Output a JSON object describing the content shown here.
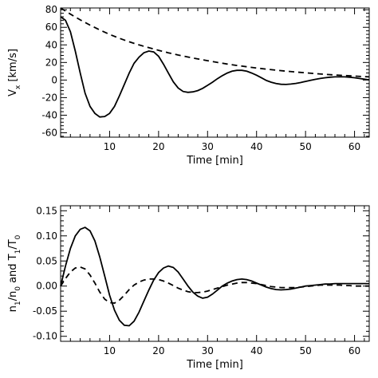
{
  "chart_data": [
    {
      "type": "line",
      "xlabel": "Time [min]",
      "ylabel": "V_x [km/s]",
      "xlim": [
        0,
        63
      ],
      "ylim": [
        -65,
        82
      ],
      "xticks": [
        10,
        20,
        30,
        40,
        50,
        60
      ],
      "yticks": [
        -60,
        -40,
        -20,
        0,
        20,
        40,
        60,
        80
      ],
      "grid": false,
      "series": [
        {
          "style": "solid",
          "x": [
            0,
            1,
            2,
            3,
            4,
            5,
            6,
            7,
            8,
            9,
            10,
            11,
            12,
            13,
            14,
            15,
            16,
            17,
            18,
            19,
            20,
            21,
            22,
            23,
            24,
            25,
            26,
            27,
            28,
            29,
            30,
            31,
            32,
            33,
            34,
            35,
            36,
            37,
            38,
            39,
            40,
            41,
            42,
            43,
            44,
            45,
            46,
            47,
            48,
            49,
            50,
            51,
            52,
            53,
            54,
            55,
            56,
            57,
            58,
            59,
            60,
            61,
            62,
            63
          ],
          "values": [
            72,
            68,
            55,
            33,
            8,
            -15,
            -30,
            -38,
            -42,
            -41.5,
            -38,
            -30,
            -18,
            -5,
            8,
            19,
            26,
            31,
            33,
            32,
            27,
            18,
            8,
            -2,
            -9,
            -13,
            -14,
            -13.5,
            -12,
            -9.5,
            -6,
            -2.5,
            1.5,
            5,
            8,
            10,
            11,
            11,
            10,
            8,
            5.5,
            2.5,
            -0.5,
            -2.5,
            -4,
            -4.8,
            -5,
            -4.6,
            -3.8,
            -2.8,
            -1.6,
            -0.4,
            0.8,
            1.8,
            2.6,
            3.2,
            3.6,
            3.7,
            3.6,
            3.2,
            2.6,
            1.8,
            1,
            0.2
          ]
        },
        {
          "style": "dashed",
          "x": [
            0,
            2,
            4,
            6,
            8,
            10,
            12,
            14,
            16,
            18,
            20,
            22,
            24,
            26,
            28,
            30,
            32,
            34,
            36,
            38,
            40,
            42,
            44,
            46,
            48,
            50,
            52,
            54,
            56,
            58,
            60,
            62,
            63
          ],
          "values": [
            82,
            75,
            68.5,
            62.5,
            57,
            52,
            47.5,
            43.5,
            40,
            36.8,
            33.8,
            31,
            28.5,
            26.2,
            24,
            22,
            20,
            18.2,
            16.6,
            15.1,
            13.7,
            12.4,
            11.2,
            10.1,
            9.1,
            8.2,
            7.3,
            6.5,
            5.8,
            5.1,
            4.5,
            3.9,
            3.6
          ]
        }
      ]
    },
    {
      "type": "line",
      "xlabel": "Time [min]",
      "ylabel": "n_1/n_0 and T_1/T_0",
      "xlim": [
        0,
        63
      ],
      "ylim": [
        -0.11,
        0.16
      ],
      "xticks": [
        10,
        20,
        30,
        40,
        50,
        60
      ],
      "yticks": [
        -0.1,
        -0.05,
        0.0,
        0.05,
        0.1,
        0.15
      ],
      "grid": false,
      "series": [
        {
          "style": "solid",
          "x": [
            0,
            1,
            2,
            3,
            4,
            5,
            6,
            7,
            8,
            9,
            10,
            11,
            12,
            13,
            14,
            15,
            16,
            17,
            18,
            19,
            20,
            21,
            22,
            23,
            24,
            25,
            26,
            27,
            28,
            29,
            30,
            31,
            32,
            33,
            34,
            35,
            36,
            37,
            38,
            39,
            40,
            41,
            42,
            43,
            44,
            45,
            46,
            47,
            48,
            49,
            50,
            51,
            52,
            53,
            54,
            55,
            56,
            57,
            58,
            59,
            60,
            61,
            62,
            63
          ],
          "values": [
            0.0,
            0.04,
            0.075,
            0.1,
            0.113,
            0.117,
            0.11,
            0.09,
            0.058,
            0.02,
            -0.018,
            -0.048,
            -0.068,
            -0.078,
            -0.079,
            -0.07,
            -0.052,
            -0.03,
            -0.008,
            0.012,
            0.027,
            0.036,
            0.04,
            0.037,
            0.028,
            0.014,
            0.0,
            -0.012,
            -0.02,
            -0.024,
            -0.022,
            -0.016,
            -0.008,
            0.0,
            0.006,
            0.01,
            0.013,
            0.014,
            0.013,
            0.01,
            0.006,
            0.002,
            -0.002,
            -0.005,
            -0.007,
            -0.0075,
            -0.007,
            -0.006,
            -0.004,
            -0.002,
            0.0,
            0.001,
            0.002,
            0.003,
            0.004,
            0.004,
            0.005,
            0.005,
            0.005,
            0.005,
            0.005,
            0.005,
            0.005,
            0.005
          ]
        },
        {
          "style": "dashed",
          "x": [
            0,
            1,
            2,
            3,
            4,
            5,
            6,
            7,
            8,
            9,
            10,
            11,
            12,
            13,
            14,
            15,
            16,
            17,
            18,
            19,
            20,
            21,
            22,
            23,
            24,
            25,
            26,
            27,
            28,
            29,
            30,
            31,
            32,
            33,
            34,
            35,
            36,
            37,
            38,
            39,
            40,
            41,
            42,
            43,
            44,
            45,
            46,
            47,
            48,
            49,
            50,
            51,
            52,
            53,
            54,
            55,
            56,
            57,
            58,
            59,
            60,
            61,
            62,
            63
          ],
          "values": [
            0.0,
            0.015,
            0.028,
            0.036,
            0.038,
            0.034,
            0.022,
            0.006,
            -0.012,
            -0.026,
            -0.033,
            -0.034,
            -0.028,
            -0.018,
            -0.007,
            0.002,
            0.008,
            0.012,
            0.014,
            0.014,
            0.013,
            0.01,
            0.006,
            0.001,
            -0.004,
            -0.008,
            -0.011,
            -0.013,
            -0.013,
            -0.012,
            -0.01,
            -0.007,
            -0.004,
            -0.001,
            0.002,
            0.004,
            0.006,
            0.007,
            0.007,
            0.006,
            0.005,
            0.003,
            0.001,
            -0.001,
            -0.002,
            -0.003,
            -0.003,
            -0.003,
            -0.003,
            -0.002,
            -0.001,
            0.0,
            0.001,
            0.002,
            0.002,
            0.002,
            0.002,
            0.002,
            0.001,
            0.001,
            0.0,
            0.0,
            0.0,
            0.0
          ]
        }
      ]
    }
  ]
}
